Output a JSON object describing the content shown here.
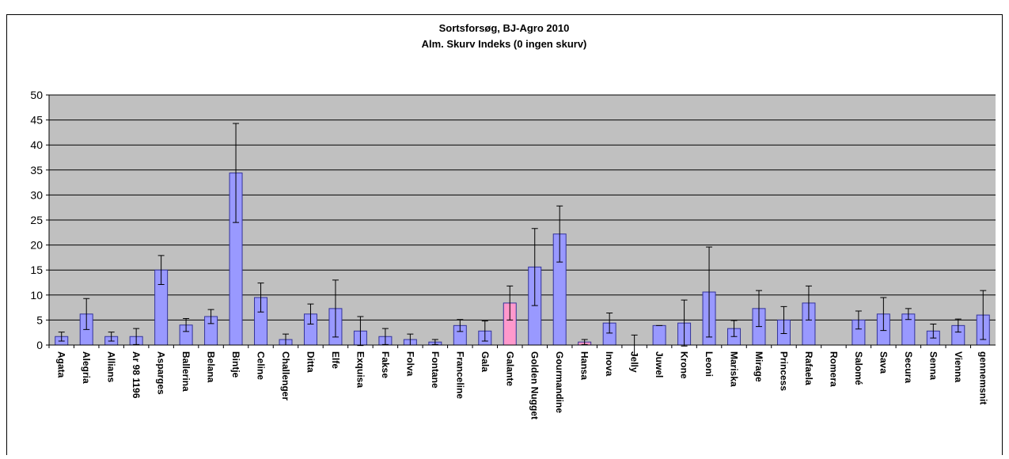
{
  "chart_data": {
    "type": "bar",
    "title": "Sortsforsøg, BJ-Agro 2010",
    "subtitle": "Alm. Skurv Indeks (0 ingen skurv)",
    "categories": [
      "Agata",
      "Alegria",
      "Allians",
      "Ar 98 1196",
      "Asparges",
      "Ballerina",
      "Belana",
      "Bintje",
      "Celine",
      "Challenger",
      "Ditta",
      "Elfe",
      "Exquisa",
      "Fakse",
      "Folva",
      "Fontane",
      "Franceline",
      "Gala",
      "Galante",
      "Golden Nugget",
      "Gourmandine",
      "Hansa",
      "Inova",
      "Jelly",
      "Juwel",
      "Krone",
      "Leoni",
      "Mariska",
      "Mirage",
      "Princess",
      "Rafaela",
      "Romera",
      "Salomé",
      "Sava",
      "Secura",
      "Senna",
      "Vienna",
      "gennemsnit"
    ],
    "values": [
      1.7,
      6.2,
      1.7,
      1.7,
      15,
      4,
      5.7,
      34.4,
      9.5,
      1.1,
      6.2,
      7.3,
      2.8,
      1.7,
      1.1,
      0.6,
      3.9,
      2.8,
      8.4,
      15.6,
      22.2,
      0.6,
      4.4,
      0,
      3.9,
      4.4,
      10.6,
      3.3,
      7.3,
      5,
      8.4,
      0,
      5,
      6.2,
      6.2,
      2.8,
      3.9,
      6
    ],
    "errors": [
      0.9,
      3.1,
      0.9,
      1.6,
      2.9,
      1.3,
      1.4,
      9.9,
      2.9,
      1.1,
      2,
      5.7,
      2.9,
      1.6,
      1.1,
      0.5,
      1.2,
      2,
      3.4,
      7.7,
      5.6,
      0.5,
      2,
      2,
      0,
      4.6,
      9,
      1.6,
      3.6,
      2.7,
      3.4,
      0,
      1.8,
      3.3,
      1.1,
      1.4,
      1.3,
      4.9
    ],
    "colors": [
      "#9999ff",
      "#9999ff",
      "#9999ff",
      "#9999ff",
      "#9999ff",
      "#9999ff",
      "#9999ff",
      "#9999ff",
      "#9999ff",
      "#9999ff",
      "#9999ff",
      "#9999ff",
      "#9999ff",
      "#9999ff",
      "#9999ff",
      "#9999ff",
      "#9999ff",
      "#9999ff",
      "#ff99cc",
      "#9999ff",
      "#9999ff",
      "#ff99cc",
      "#9999ff",
      "#9999ff",
      "#9999ff",
      "#9999ff",
      "#9999ff",
      "#9999ff",
      "#9999ff",
      "#9999ff",
      "#9999ff",
      "#9999ff",
      "#9999ff",
      "#9999ff",
      "#9999ff",
      "#9999ff",
      "#9999ff",
      "#9999ff"
    ],
    "ylim": [
      0,
      50
    ],
    "yticks": [
      0,
      5,
      10,
      15,
      20,
      25,
      30,
      35,
      40,
      45,
      50
    ],
    "grid": true
  }
}
